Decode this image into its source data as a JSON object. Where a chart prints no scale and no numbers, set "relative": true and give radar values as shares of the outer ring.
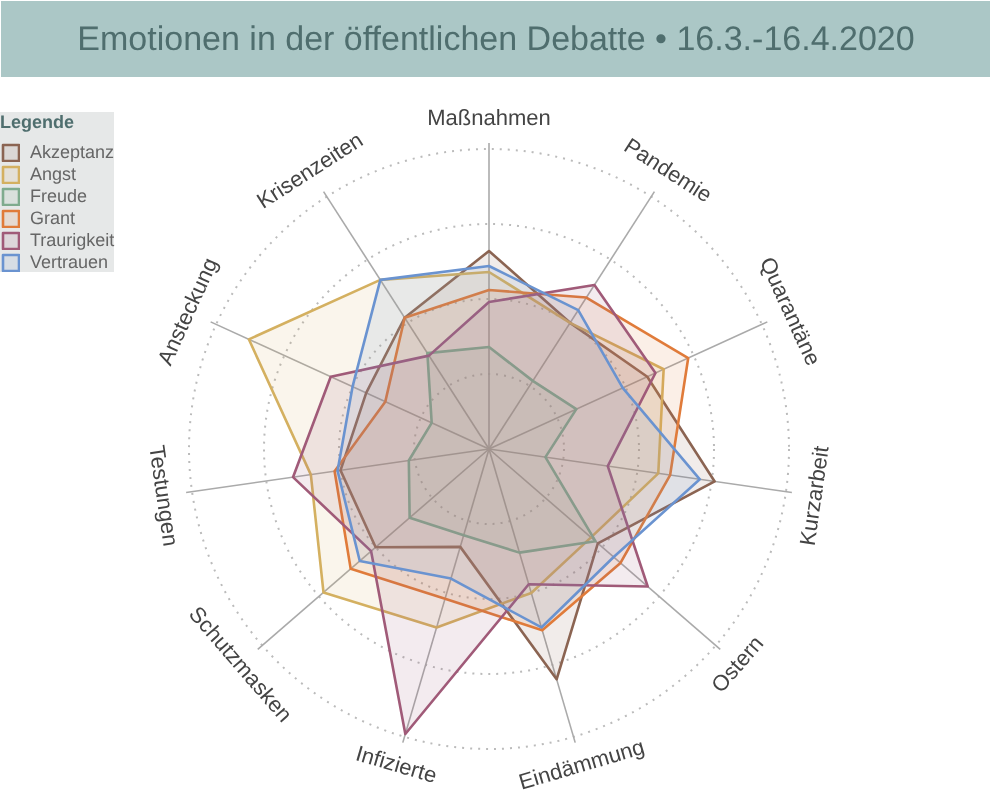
{
  "chart_data": {
    "type": "radar",
    "title": "Emotionen in der öffentlichen Debatte • 16.3.-16.4.2020",
    "legend_title": "Legende",
    "relative": true,
    "grid": true,
    "legend": "top left",
    "categories": [
      "Maßnahmen",
      "Pandemie",
      "Quarantäne",
      "Kurzarbeit",
      "Ostern",
      "Eindämmung",
      "Infizierte",
      "Schutzmasken",
      "Testungen",
      "Ansteckung",
      "Krisenzeiten"
    ],
    "series": [
      {
        "name": "Akzeptanz",
        "color": "#8b6452",
        "values": [
          0.66,
          0.5,
          0.58,
          0.76,
          0.48,
          0.8,
          0.34,
          0.5,
          0.5,
          0.45,
          0.52
        ]
      },
      {
        "name": "Angst",
        "color": "#d4b060",
        "values": [
          0.59,
          0.5,
          0.64,
          0.57,
          0.45,
          0.5,
          0.62,
          0.73,
          0.6,
          0.88,
          0.67
        ]
      },
      {
        "name": "Freude",
        "color": "#7fab8e",
        "values": [
          0.34,
          0.27,
          0.32,
          0.19,
          0.47,
          0.36,
          0.3,
          0.35,
          0.27,
          0.21,
          0.38
        ]
      },
      {
        "name": "Grant",
        "color": "#e07b3a",
        "values": [
          0.53,
          0.6,
          0.73,
          0.61,
          0.58,
          0.63,
          0.52,
          0.61,
          0.52,
          0.38,
          0.52
        ]
      },
      {
        "name": "Traurigkeit",
        "color": "#a05a78",
        "values": [
          0.49,
          0.65,
          0.61,
          0.4,
          0.7,
          0.47,
          0.99,
          0.52,
          0.66,
          0.58,
          0.37
        ]
      },
      {
        "name": "Vertrauen",
        "color": "#6a93d0",
        "values": [
          0.61,
          0.55,
          0.49,
          0.71,
          0.55,
          0.62,
          0.45,
          0.57,
          0.51,
          0.5,
          0.67
        ]
      }
    ]
  }
}
